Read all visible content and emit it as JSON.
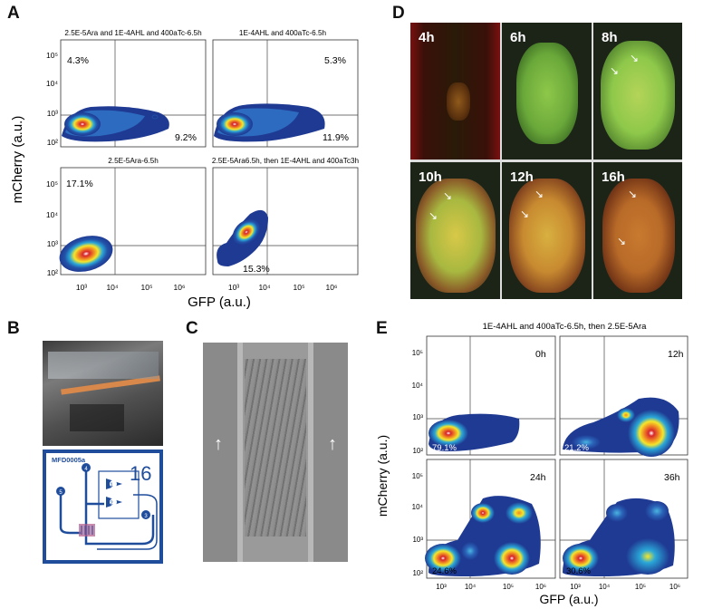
{
  "figure": {
    "panel_letters": {
      "A": "A",
      "B": "B",
      "C": "C",
      "D": "D",
      "E": "E"
    }
  },
  "panel_a": {
    "y_axis_label": "mCherry (a.u.)",
    "x_axis_label": "GFP (a.u.)",
    "y_ticks": [
      "10⁵",
      "10⁴",
      "10³",
      "10²"
    ],
    "x_ticks": [
      "10³",
      "10⁴",
      "10⁵",
      "10⁶"
    ],
    "plots": [
      {
        "title": "2.5E-5Ara and 1E-4AHL and 400aTc-6.5h",
        "pct_top": "4.3%",
        "pct_bottom": "9.2%"
      },
      {
        "title": "1E-4AHL and 400aTc-6.5h",
        "pct_top": "5.3%",
        "pct_bottom": "11.9%"
      },
      {
        "title": "2.5E-5Ara-6.5h",
        "pct_top": "17.1%",
        "pct_bottom": ""
      },
      {
        "title": "2.5E-5Ara6.5h, then 1E-4AHL and 400aTc3h",
        "pct_top": "",
        "pct_bottom": "15.3%"
      }
    ]
  },
  "panel_b": {
    "chip_label": "MFD0005a",
    "chip_number": "16",
    "ports": [
      "1",
      "2",
      "3",
      "4",
      "5"
    ]
  },
  "panel_d": {
    "timepoints": [
      "4h",
      "6h",
      "8h",
      "10h",
      "12h",
      "16h"
    ]
  },
  "panel_e": {
    "title": "1E-4AHL and 400aTc-6.5h, then 2.5E-5Ara",
    "y_axis_label": "mCherry (a.u.)",
    "x_axis_label": "GFP (a.u.)",
    "y_ticks": [
      "10⁵",
      "10⁴",
      "10³",
      "10²"
    ],
    "x_ticks": [
      "10³",
      "10⁴",
      "10⁵",
      "10⁶"
    ],
    "plots": [
      {
        "time": "0h",
        "pct": "79.1%"
      },
      {
        "time": "12h",
        "pct": "21.2%"
      },
      {
        "time": "24h",
        "pct": "24.6%"
      },
      {
        "time": "36h",
        "pct": "30.6%"
      }
    ]
  },
  "colors": {
    "contour_outer": "#1f3a93",
    "contour_mid": "#2aa7d8",
    "contour_yellow": "#f5e62a",
    "contour_orange": "#f08a24",
    "contour_core": "#d8262b",
    "chip_blue": "#1f4d9c"
  }
}
